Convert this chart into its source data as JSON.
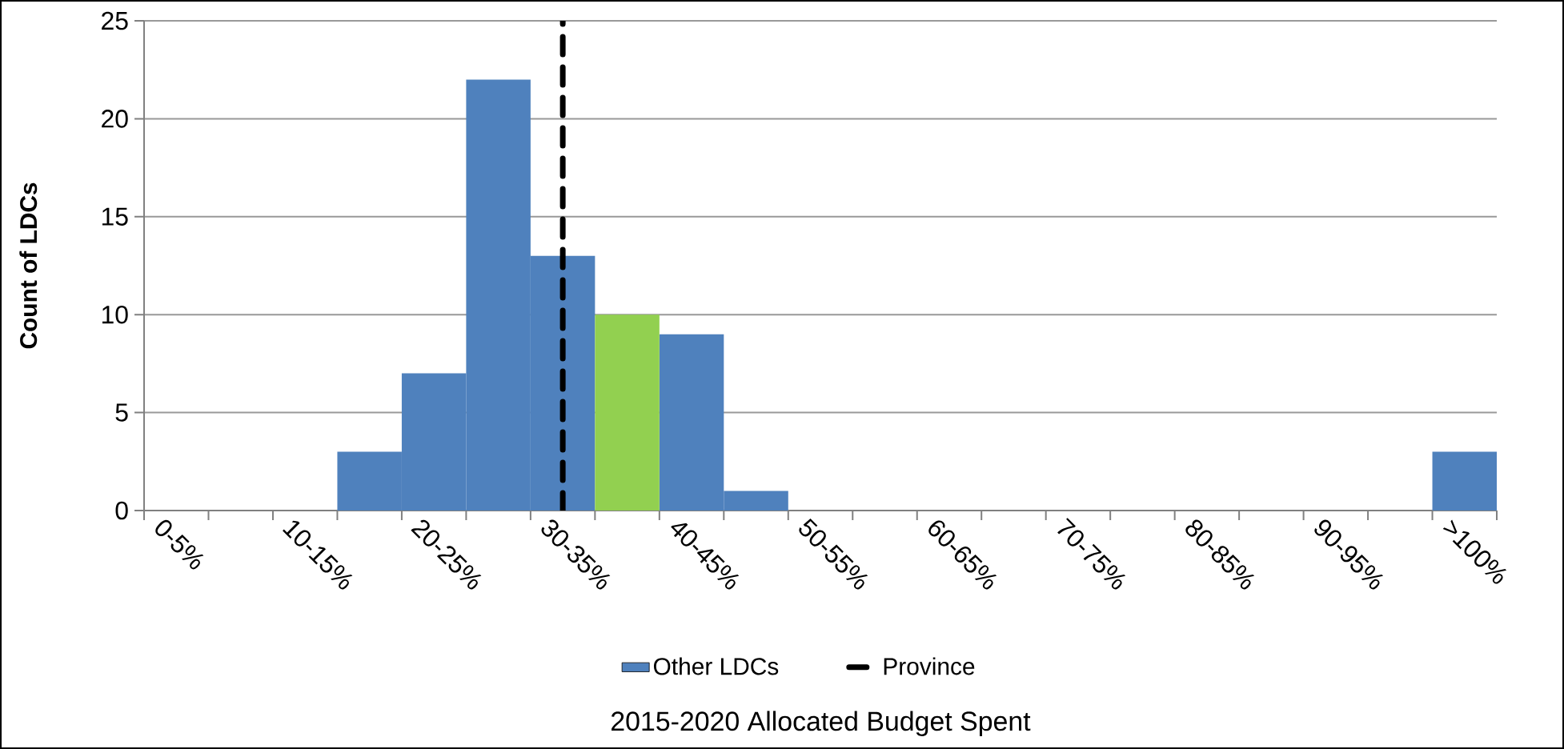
{
  "chart_data": {
    "type": "bar",
    "xlabel": "2015-2020 Allocated Budget Spent",
    "ylabel": "Count of LDCs",
    "categories": [
      "0-5%",
      null,
      "10-15%",
      null,
      "20-25%",
      null,
      "30-35%",
      null,
      "40-45%",
      null,
      "50-55%",
      null,
      "60-65%",
      null,
      "70-75%",
      null,
      "80-85%",
      null,
      "90-95%",
      null,
      ">100%"
    ],
    "series": [
      {
        "name": "Other LDCs",
        "color": "#4f81bd",
        "values": [
          null,
          null,
          null,
          3,
          7,
          22,
          13,
          null,
          9,
          1,
          null,
          null,
          null,
          null,
          null,
          null,
          null,
          null,
          null,
          null,
          3
        ]
      },
      {
        "color": "#92d050",
        "values": [
          null,
          null,
          null,
          null,
          null,
          null,
          null,
          10,
          null,
          null,
          null,
          null,
          null,
          null,
          null,
          null,
          null,
          null,
          null,
          null,
          null
        ]
      }
    ],
    "ylim": [
      0,
      25
    ],
    "yticks": [
      0,
      5,
      10,
      15,
      20,
      25
    ],
    "grid": "y",
    "legend": "bottom",
    "ref_lines": [
      {
        "axis": "x",
        "value": "30-35%",
        "label": "Province",
        "color": "#000000",
        "line_style": "dashed"
      }
    ]
  }
}
